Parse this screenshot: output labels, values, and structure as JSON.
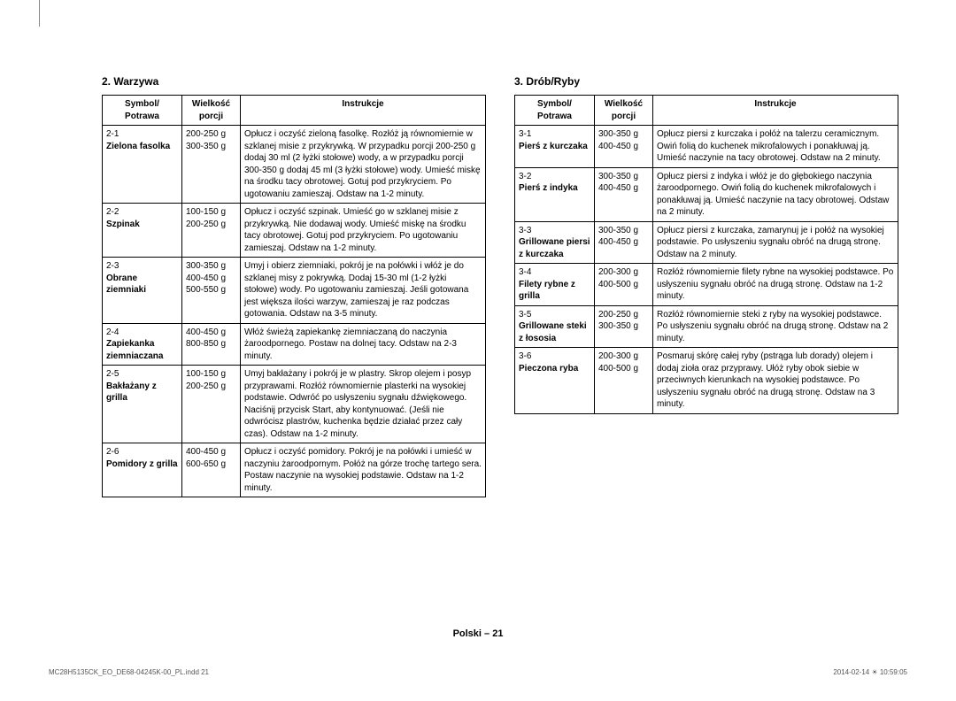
{
  "sections": [
    {
      "title": "2. Warzywa",
      "headers": {
        "symbol": "Symbol/\nPotrawa",
        "size": "Wielkość\nporcji",
        "instr": "Instrukcje"
      },
      "rows": [
        {
          "code": "2-1",
          "name": "Zielona fasolka",
          "sizes": [
            "200-250 g",
            "300-350 g"
          ],
          "instr": "Opłucz i oczyść zieloną fasolkę. Rozłóż ją równomiernie w szklanej misie z przykrywką. W przypadku porcji 200-250 g dodaj 30 ml (2 łyżki stołowe) wody, a w przypadku porcji 300-350 g dodaj 45 ml (3 łyżki stołowe) wody. Umieść miskę na środku tacy obrotowej. Gotuj pod przykryciem. Po ugotowaniu zamieszaj. Odstaw na 1-2 minuty."
        },
        {
          "code": "2-2",
          "name": "Szpinak",
          "sizes": [
            "100-150 g",
            "200-250 g"
          ],
          "instr": "Opłucz i oczyść szpinak. Umieść go w szklanej misie z przykrywką. Nie dodawaj wody. Umieść miskę na środku tacy obrotowej. Gotuj pod przykryciem. Po ugotowaniu zamieszaj. Odstaw na 1-2 minuty."
        },
        {
          "code": "2-3",
          "name": "Obrane ziemniaki",
          "sizes": [
            "300-350 g",
            "400-450 g",
            "500-550 g"
          ],
          "instr": "Umyj i obierz ziemniaki, pokrój je na połówki i włóż je do szklanej misy z pokrywką. Dodaj 15-30 ml (1-2 łyżki stołowe) wody. Po ugotowaniu zamieszaj. Jeśli gotowana jest większa ilości warzyw, zamieszaj je raz podczas gotowania. Odstaw na 3-5 minuty."
        },
        {
          "code": "2-4",
          "name": "Zapiekanka ziemniaczana",
          "sizes": [
            "400-450 g",
            "800-850 g"
          ],
          "instr": "Włóż świeżą zapiekankę ziemniaczaną do naczynia żaroodpornego. Postaw na dolnej tacy. Odstaw na 2-3 minuty."
        },
        {
          "code": "2-5",
          "name": "Bakłażany z grilla",
          "sizes": [
            "100-150 g",
            "200-250 g"
          ],
          "instr": "Umyj bakłażany i pokrój je w plastry. Skrop olejem i posyp przyprawami. Rozłóż równomiernie plasterki na wysokiej podstawie. Odwróć po usłyszeniu sygnału dźwiękowego. Naciśnij przycisk Start, aby kontynuować. (Jeśli nie odwrócisz plastrów, kuchenka będzie działać przez cały czas). Odstaw na 1-2 minuty."
        },
        {
          "code": "2-6",
          "name": "Pomidory z grilla",
          "sizes": [
            "400-450 g",
            "600-650 g"
          ],
          "instr": "Opłucz i oczyść pomidory. Pokrój je na połówki i umieść w naczyniu żaroodpornym. Połóż na górze trochę tartego sera. Postaw naczynie na wysokiej podstawie. Odstaw na 1-2 minuty."
        }
      ]
    },
    {
      "title": "3. Drób/Ryby",
      "headers": {
        "symbol": "Symbol/\nPotrawa",
        "size": "Wielkość\nporcji",
        "instr": "Instrukcje"
      },
      "rows": [
        {
          "code": "3-1",
          "name": "Pierś z kurczaka",
          "sizes": [
            "300-350 g",
            "400-450 g"
          ],
          "instr": "Opłucz piersi z kurczaka i połóż na talerzu ceramicznym. Owiń folią do kuchenek mikrofalowych i ponakłuwaj ją. Umieść naczynie na tacy obrotowej. Odstaw na 2 minuty."
        },
        {
          "code": "3-2",
          "name": "Pierś z indyka",
          "sizes": [
            "300-350 g",
            "400-450 g"
          ],
          "instr": "Opłucz piersi z indyka i włóż je do głębokiego naczynia żaroodpornego. Owiń folią do kuchenek mikrofalowych i ponakłuwaj ją. Umieść naczynie na tacy obrotowej. Odstaw na 2 minuty."
        },
        {
          "code": "3-3",
          "name": "Grillowane piersi z kurczaka",
          "sizes": [
            "300-350 g",
            "400-450 g"
          ],
          "instr": "Opłucz piersi z kurczaka, zamarynuj je i połóż na wysokiej podstawie. Po usłyszeniu sygnału obróć na drugą stronę. Odstaw na 2 minuty."
        },
        {
          "code": "3-4",
          "name": "Filety rybne z grilla",
          "sizes": [
            "200-300 g",
            "400-500 g"
          ],
          "instr": "Rozłóż równomiernie filety rybne na wysokiej podstawce. Po usłyszeniu sygnału obróć na drugą stronę. Odstaw na 1-2 minuty."
        },
        {
          "code": "3-5",
          "name": "Grillowane steki z łososia",
          "sizes": [
            "200-250 g",
            "300-350 g"
          ],
          "instr": "Rozłóż równomiernie steki z ryby na wysokiej podstawce. Po usłyszeniu sygnału obróć na drugą stronę. Odstaw na 2 minuty."
        },
        {
          "code": "3-6",
          "name": "Pieczona ryba",
          "sizes": [
            "200-300 g",
            "400-500 g"
          ],
          "instr": "Posmaruj skórę całej ryby (pstrąga lub dorady) olejem i dodaj zioła oraz przyprawy. Ułóż ryby obok siebie w przeciwnych kierunkach na wysokiej podstawce. Po usłyszeniu sygnału obróć na drugą stronę. Odstaw na 3 minuty."
        }
      ]
    }
  ],
  "pageFooter": "Polski – 21",
  "footerLeft": "MC28H5135CK_EO_DE68-04245K-00_PL.indd   21",
  "footerRight": "2014-02-14   ☀ 10:59:05"
}
